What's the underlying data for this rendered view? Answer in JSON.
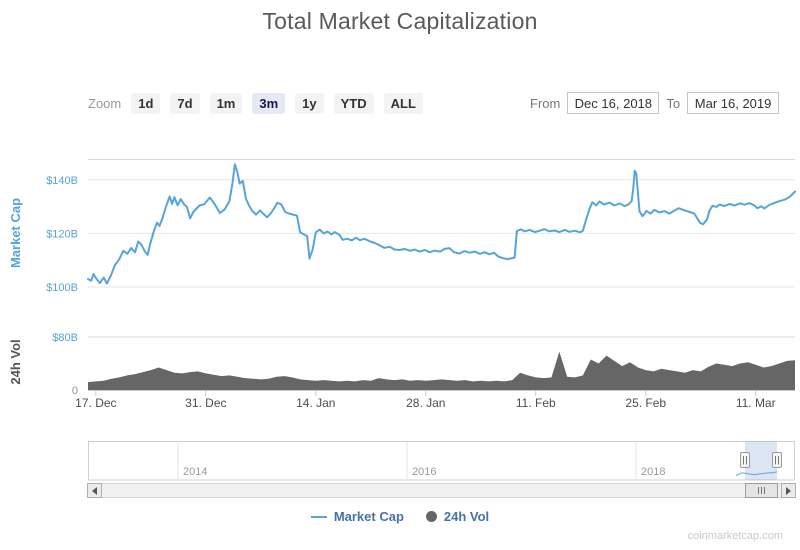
{
  "title": "Total Market Capitalization",
  "watermark": "coinmarketcap.com",
  "controls": {
    "zoom_label": "Zoom",
    "zoom_options": [
      "1d",
      "7d",
      "1m",
      "3m",
      "1y",
      "YTD",
      "ALL"
    ],
    "zoom_selected": "3m",
    "from_label": "From",
    "from_value": "Dec 16, 2018",
    "to_label": "To",
    "to_value": "Mar 16, 2019"
  },
  "legend": [
    {
      "label": "Market Cap",
      "marker": "line",
      "color": "#56A5D8"
    },
    {
      "label": "24h Vol",
      "marker": "circle",
      "color": "#666666"
    }
  ],
  "chart_data": {
    "type": "line",
    "title": "Total Market Capitalization",
    "x_range": [
      "Dec 16, 2018",
      "Mar 16, 2019"
    ],
    "x_range_days": 90,
    "x_ticks": [
      {
        "day": 1,
        "label": "17. Dec"
      },
      {
        "day": 15,
        "label": "31. Dec"
      },
      {
        "day": 29,
        "label": "14. Jan"
      },
      {
        "day": 43,
        "label": "28. Jan"
      },
      {
        "day": 57,
        "label": "11. Feb"
      },
      {
        "day": 71,
        "label": "25. Feb"
      },
      {
        "day": 85,
        "label": "11. Mar"
      }
    ],
    "panes": [
      {
        "name": "market_cap",
        "axis_title": "Market Cap",
        "unit": "USD billions",
        "ylim": [
          93,
          147.5
        ],
        "yticks": [
          {
            "value": 100,
            "label": "$100B"
          },
          {
            "value": 120,
            "label": "$120B"
          },
          {
            "value": 140,
            "label": "$140B"
          }
        ]
      },
      {
        "name": "volume",
        "axis_title": "24h Vol",
        "unit": "USD billions",
        "ylim": [
          0,
          80
        ],
        "yticks": [
          {
            "value": 0,
            "label": "0"
          },
          {
            "value": 80,
            "label": "$80B"
          }
        ]
      }
    ],
    "series": [
      {
        "name": "Market Cap",
        "type": "line",
        "pane": "market_cap",
        "color": "#56A5D8",
        "points": [
          [
            0,
            103
          ],
          [
            0.4,
            102.3
          ],
          [
            0.7,
            104.8
          ],
          [
            1.1,
            103
          ],
          [
            1.5,
            101.5
          ],
          [
            2,
            103.5
          ],
          [
            2.4,
            101.3
          ],
          [
            2.9,
            104.2
          ],
          [
            3.4,
            108
          ],
          [
            4,
            110.5
          ],
          [
            4.5,
            113.5
          ],
          [
            5,
            112.4
          ],
          [
            5.5,
            114.6
          ],
          [
            6,
            113
          ],
          [
            6.4,
            117
          ],
          [
            6.8,
            115.8
          ],
          [
            7.2,
            113.4
          ],
          [
            7.6,
            112
          ],
          [
            7.9,
            116
          ],
          [
            8.4,
            121
          ],
          [
            8.8,
            124
          ],
          [
            9.1,
            122.8
          ],
          [
            9.5,
            125.8
          ],
          [
            9.9,
            129.8
          ],
          [
            10.4,
            133.8
          ],
          [
            10.7,
            131
          ],
          [
            11,
            133.5
          ],
          [
            11.4,
            130.5
          ],
          [
            11.8,
            132.8
          ],
          [
            12.2,
            131
          ],
          [
            12.6,
            129.8
          ],
          [
            13,
            125.6
          ],
          [
            13.4,
            128
          ],
          [
            14.2,
            130.4
          ],
          [
            14.8,
            130.9
          ],
          [
            15.5,
            133.4
          ],
          [
            16.1,
            131
          ],
          [
            16.8,
            127.6
          ],
          [
            17.4,
            129
          ],
          [
            18,
            132
          ],
          [
            18.4,
            138.8
          ],
          [
            18.7,
            145.8
          ],
          [
            19,
            143
          ],
          [
            19.3,
            138.6
          ],
          [
            19.7,
            139.6
          ],
          [
            20.1,
            133
          ],
          [
            20.5,
            130.4
          ],
          [
            20.9,
            128.4
          ],
          [
            21.4,
            127
          ],
          [
            21.9,
            128.6
          ],
          [
            22.3,
            127.4
          ],
          [
            22.8,
            126
          ],
          [
            23.3,
            127.6
          ],
          [
            23.7,
            129.4
          ],
          [
            24.1,
            131.4
          ],
          [
            24.6,
            130.9
          ],
          [
            25.1,
            128
          ],
          [
            25.6,
            127.4
          ],
          [
            26.1,
            127
          ],
          [
            26.6,
            126.6
          ],
          [
            27,
            120.4
          ],
          [
            27.5,
            119.6
          ],
          [
            27.9,
            119
          ],
          [
            28.2,
            110.6
          ],
          [
            28.6,
            114
          ],
          [
            29,
            120.4
          ],
          [
            29.5,
            121.4
          ],
          [
            30,
            120
          ],
          [
            30.5,
            120.7
          ],
          [
            31,
            119.6
          ],
          [
            31.4,
            120.5
          ],
          [
            32,
            119.5
          ],
          [
            32.4,
            117.6
          ],
          [
            33,
            118
          ],
          [
            33.6,
            117.4
          ],
          [
            34.1,
            118.4
          ],
          [
            34.6,
            117.5
          ],
          [
            35.2,
            118
          ],
          [
            35.9,
            117
          ],
          [
            36.5,
            116.4
          ],
          [
            37.1,
            115.6
          ],
          [
            37.7,
            114.6
          ],
          [
            38.4,
            115
          ],
          [
            39,
            114
          ],
          [
            39.7,
            113.8
          ],
          [
            40.3,
            114.2
          ],
          [
            41,
            113.5
          ],
          [
            41.6,
            114
          ],
          [
            42.2,
            113.2
          ],
          [
            42.9,
            113.8
          ],
          [
            43.5,
            113
          ],
          [
            44.1,
            113.6
          ],
          [
            44.8,
            113.2
          ],
          [
            45.4,
            114.2
          ],
          [
            46,
            114.5
          ],
          [
            46.6,
            113
          ],
          [
            47.3,
            112.5
          ],
          [
            47.9,
            113.4
          ],
          [
            48.6,
            112.8
          ],
          [
            49.2,
            113.2
          ],
          [
            49.9,
            112.4
          ],
          [
            50.5,
            113
          ],
          [
            51.1,
            112.2
          ],
          [
            51.7,
            112.8
          ],
          [
            52.2,
            111.4
          ],
          [
            52.8,
            110.8
          ],
          [
            53.4,
            110.4
          ],
          [
            54,
            110.8
          ],
          [
            54.3,
            111
          ],
          [
            54.6,
            120.9
          ],
          [
            55.1,
            121.5
          ],
          [
            55.6,
            120.8
          ],
          [
            56.2,
            121.3
          ],
          [
            56.9,
            120.5
          ],
          [
            57.5,
            121
          ],
          [
            58.1,
            121.6
          ],
          [
            58.7,
            120.8
          ],
          [
            59.4,
            121.1
          ],
          [
            60,
            120.5
          ],
          [
            60.7,
            121.3
          ],
          [
            61.3,
            120.6
          ],
          [
            62,
            121
          ],
          [
            62.6,
            120.4
          ],
          [
            63,
            121
          ],
          [
            63.5,
            126
          ],
          [
            63.9,
            129.6
          ],
          [
            64.2,
            131.6
          ],
          [
            64.7,
            130.4
          ],
          [
            65.1,
            131.9
          ],
          [
            65.7,
            130.8
          ],
          [
            66.4,
            131.5
          ],
          [
            67,
            130.4
          ],
          [
            67.7,
            131.2
          ],
          [
            68.3,
            130.2
          ],
          [
            68.8,
            130.8
          ],
          [
            69.2,
            132
          ],
          [
            69.4,
            136.5
          ],
          [
            69.6,
            143.4
          ],
          [
            69.8,
            142.4
          ],
          [
            70.2,
            128.2
          ],
          [
            70.6,
            126.4
          ],
          [
            71.1,
            128.4
          ],
          [
            71.6,
            127.4
          ],
          [
            72.1,
            128.8
          ],
          [
            72.7,
            127.8
          ],
          [
            73.4,
            128.3
          ],
          [
            74,
            127.4
          ],
          [
            74.7,
            128.6
          ],
          [
            75.2,
            129.4
          ],
          [
            76,
            128.5
          ],
          [
            76.6,
            128
          ],
          [
            77.2,
            127.4
          ],
          [
            77.9,
            124
          ],
          [
            78.3,
            123.4
          ],
          [
            78.8,
            125.2
          ],
          [
            79.1,
            128.4
          ],
          [
            79.5,
            130.3
          ],
          [
            80,
            129.9
          ],
          [
            80.4,
            130.8
          ],
          [
            81,
            130.2
          ],
          [
            81.7,
            131
          ],
          [
            82.3,
            130.4
          ],
          [
            83,
            131.2
          ],
          [
            83.6,
            130.7
          ],
          [
            84.2,
            131.3
          ],
          [
            84.8,
            130.5
          ],
          [
            85.2,
            129.4
          ],
          [
            85.7,
            130.1
          ],
          [
            86.1,
            129.3
          ],
          [
            86.7,
            130.6
          ],
          [
            87.4,
            131.4
          ],
          [
            88,
            132
          ],
          [
            88.7,
            132.6
          ],
          [
            89.3,
            133.6
          ],
          [
            90,
            135.6
          ]
        ]
      },
      {
        "name": "24h Vol",
        "type": "area",
        "pane": "volume",
        "color": "#666666",
        "start_day": 0,
        "step_days": 1,
        "values": [
          12,
          13,
          14,
          17,
          19,
          22,
          24,
          27,
          30,
          34,
          30,
          26,
          25,
          27,
          28,
          25,
          23,
          21,
          22,
          20,
          18,
          17,
          16,
          17,
          20,
          21,
          19,
          16,
          15,
          14,
          15,
          14,
          13,
          14,
          13,
          15,
          14,
          18,
          16,
          15,
          16,
          14,
          15,
          14,
          15,
          16,
          15,
          14,
          15,
          13,
          14,
          13,
          14,
          13,
          15,
          26,
          22,
          19,
          18,
          19,
          58,
          20,
          19,
          22,
          46,
          40,
          52,
          44,
          36,
          42,
          34,
          30,
          28,
          32,
          30,
          28,
          26,
          30,
          28,
          35,
          40,
          38,
          36,
          40,
          42,
          38,
          34,
          36,
          40,
          44,
          45
        ]
      }
    ],
    "navigator": {
      "years": [
        "2014",
        "2016",
        "2018"
      ]
    }
  }
}
